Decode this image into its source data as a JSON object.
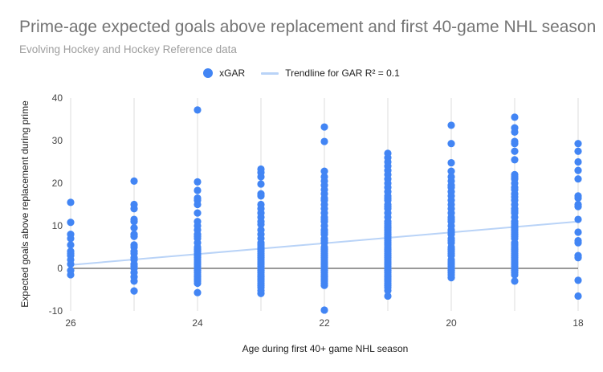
{
  "chart_data": {
    "type": "scatter",
    "title": "Prime-age expected goals above replacement and first 40-game NHL season",
    "subtitle": "Evolving Hockey and Hockey Reference data",
    "xlabel": "Age during first 40+ game NHL season",
    "ylabel": "Expected goals above replacement during prime",
    "xlim": [
      26,
      18
    ],
    "x_reversed": true,
    "ylim": [
      -10,
      40
    ],
    "x_ticks": [
      "26",
      "24",
      "22",
      "20",
      "18"
    ],
    "y_ticks": [
      "-10",
      "0",
      "10",
      "20",
      "30",
      "40"
    ],
    "grid": "vertical",
    "legend_position": "top",
    "colors": {
      "points": "#4285f4",
      "trendline": "#b9d3f7"
    },
    "series": [
      {
        "name": "xGAR",
        "points": [
          [
            26,
            15.5
          ],
          [
            26,
            10.8
          ],
          [
            26,
            8
          ],
          [
            26,
            7
          ],
          [
            26,
            5.5
          ],
          [
            26,
            4
          ],
          [
            26,
            3.5
          ],
          [
            26,
            3
          ],
          [
            26,
            2
          ],
          [
            26,
            1
          ],
          [
            26,
            -0.5
          ],
          [
            26,
            -1.5
          ],
          [
            25,
            20.5
          ],
          [
            25,
            15
          ],
          [
            25,
            14
          ],
          [
            25,
            11.5
          ],
          [
            25,
            11
          ],
          [
            25,
            9.5
          ],
          [
            25,
            8
          ],
          [
            25,
            7.5
          ],
          [
            25,
            5.5
          ],
          [
            25,
            5
          ],
          [
            25,
            4
          ],
          [
            25,
            3.5
          ],
          [
            25,
            2.5
          ],
          [
            25,
            2
          ],
          [
            25,
            1
          ],
          [
            25,
            0.5
          ],
          [
            25,
            0
          ],
          [
            25,
            -1
          ],
          [
            25,
            -2
          ],
          [
            25,
            -3
          ],
          [
            25,
            -5.3
          ],
          [
            24,
            37.2
          ],
          [
            24,
            20.3
          ],
          [
            24,
            18.3
          ],
          [
            24,
            16.5
          ],
          [
            24,
            16
          ],
          [
            24,
            15
          ],
          [
            24,
            13
          ],
          [
            24,
            11
          ],
          [
            24,
            10
          ],
          [
            24,
            9
          ],
          [
            24,
            8
          ],
          [
            24,
            7.5
          ],
          [
            24,
            7
          ],
          [
            24,
            6
          ],
          [
            24,
            5
          ],
          [
            24,
            4.5
          ],
          [
            24,
            4
          ],
          [
            24,
            3.5
          ],
          [
            24,
            3
          ],
          [
            24,
            2.5
          ],
          [
            24,
            2
          ],
          [
            24,
            1.5
          ],
          [
            24,
            1
          ],
          [
            24,
            0.5
          ],
          [
            24,
            0
          ],
          [
            24,
            -0.5
          ],
          [
            24,
            -1
          ],
          [
            24,
            -1.5
          ],
          [
            24,
            -2
          ],
          [
            24,
            -2.5
          ],
          [
            24,
            -3
          ],
          [
            24,
            -3.5
          ],
          [
            24,
            -5.7
          ],
          [
            23,
            23.3
          ],
          [
            23,
            22.5
          ],
          [
            23,
            21.5
          ],
          [
            23,
            19.8
          ],
          [
            23,
            17.5
          ],
          [
            23,
            17
          ],
          [
            23,
            15
          ],
          [
            23,
            14
          ],
          [
            23,
            13
          ],
          [
            23,
            12
          ],
          [
            23,
            11
          ],
          [
            23,
            10.3
          ],
          [
            23,
            9
          ],
          [
            23,
            8
          ],
          [
            23,
            7
          ],
          [
            23,
            6
          ],
          [
            23,
            5.5
          ],
          [
            23,
            5
          ],
          [
            23,
            4.5
          ],
          [
            23,
            4
          ],
          [
            23,
            3.5
          ],
          [
            23,
            3
          ],
          [
            23,
            2.5
          ],
          [
            23,
            2
          ],
          [
            23,
            1.5
          ],
          [
            23,
            1
          ],
          [
            23,
            0.5
          ],
          [
            23,
            0
          ],
          [
            23,
            -0.5
          ],
          [
            23,
            -1
          ],
          [
            23,
            -1.5
          ],
          [
            23,
            -2
          ],
          [
            23,
            -2.5
          ],
          [
            23,
            -3
          ],
          [
            23,
            -3.5
          ],
          [
            23,
            -4
          ],
          [
            23,
            -4.5
          ],
          [
            23,
            -5.2
          ],
          [
            23,
            -5.9
          ],
          [
            22,
            33.2
          ],
          [
            22,
            29.8
          ],
          [
            22,
            22.8
          ],
          [
            22,
            21.5
          ],
          [
            22,
            20.5
          ],
          [
            22,
            19.5
          ],
          [
            22,
            18.5
          ],
          [
            22,
            17.5
          ],
          [
            22,
            16.5
          ],
          [
            22,
            16
          ],
          [
            22,
            15
          ],
          [
            22,
            14
          ],
          [
            22,
            13
          ],
          [
            22,
            12
          ],
          [
            22,
            11.5
          ],
          [
            22,
            11
          ],
          [
            22,
            10
          ],
          [
            22,
            9
          ],
          [
            22,
            8.5
          ],
          [
            22,
            8
          ],
          [
            22,
            7
          ],
          [
            22,
            6.5
          ],
          [
            22,
            6
          ],
          [
            22,
            5
          ],
          [
            22,
            4.5
          ],
          [
            22,
            4
          ],
          [
            22,
            3.5
          ],
          [
            22,
            3
          ],
          [
            22,
            2.5
          ],
          [
            22,
            2
          ],
          [
            22,
            1.5
          ],
          [
            22,
            1
          ],
          [
            22,
            0.5
          ],
          [
            22,
            0
          ],
          [
            22,
            -0.5
          ],
          [
            22,
            -1
          ],
          [
            22,
            -1.5
          ],
          [
            22,
            -2
          ],
          [
            22,
            -2.5
          ],
          [
            22,
            -3
          ],
          [
            22,
            -3.5
          ],
          [
            22,
            -4
          ],
          [
            22,
            -9.8
          ],
          [
            21,
            27
          ],
          [
            21,
            26
          ],
          [
            21,
            25
          ],
          [
            21,
            24
          ],
          [
            21,
            23
          ],
          [
            21,
            22
          ],
          [
            21,
            21
          ],
          [
            21,
            20
          ],
          [
            21,
            19
          ],
          [
            21,
            18
          ],
          [
            21,
            17
          ],
          [
            21,
            16.5
          ],
          [
            21,
            16
          ],
          [
            21,
            15
          ],
          [
            21,
            14.5
          ],
          [
            21,
            14
          ],
          [
            21,
            13
          ],
          [
            21,
            12
          ],
          [
            21,
            11
          ],
          [
            21,
            10.5
          ],
          [
            21,
            10
          ],
          [
            21,
            9.5
          ],
          [
            21,
            9
          ],
          [
            21,
            8.5
          ],
          [
            21,
            8
          ],
          [
            21,
            7.5
          ],
          [
            21,
            7
          ],
          [
            21,
            6.5
          ],
          [
            21,
            6
          ],
          [
            21,
            5.5
          ],
          [
            21,
            5
          ],
          [
            21,
            4.5
          ],
          [
            21,
            4
          ],
          [
            21,
            3.5
          ],
          [
            21,
            3
          ],
          [
            21,
            2.5
          ],
          [
            21,
            2
          ],
          [
            21,
            1.5
          ],
          [
            21,
            1
          ],
          [
            21,
            0.5
          ],
          [
            21,
            0
          ],
          [
            21,
            -0.5
          ],
          [
            21,
            -1
          ],
          [
            21,
            -1.5
          ],
          [
            21,
            -2
          ],
          [
            21,
            -2.5
          ],
          [
            21,
            -3
          ],
          [
            21,
            -3.5
          ],
          [
            21,
            -4
          ],
          [
            21,
            -4.5
          ],
          [
            21,
            -5.2
          ],
          [
            21,
            -6.5
          ],
          [
            20,
            33.6
          ],
          [
            20,
            29.3
          ],
          [
            20,
            24.8
          ],
          [
            20,
            22.8
          ],
          [
            20,
            21.5
          ],
          [
            20,
            20.5
          ],
          [
            20,
            19.5
          ],
          [
            20,
            19
          ],
          [
            20,
            18
          ],
          [
            20,
            17
          ],
          [
            20,
            16
          ],
          [
            20,
            15
          ],
          [
            20,
            14
          ],
          [
            20,
            13
          ],
          [
            20,
            12
          ],
          [
            20,
            11.5
          ],
          [
            20,
            11
          ],
          [
            20,
            10
          ],
          [
            20,
            9
          ],
          [
            20,
            8.5
          ],
          [
            20,
            8
          ],
          [
            20,
            7
          ],
          [
            20,
            6.5
          ],
          [
            20,
            6
          ],
          [
            20,
            5
          ],
          [
            20,
            4.5
          ],
          [
            20,
            4
          ],
          [
            20,
            3.5
          ],
          [
            20,
            3
          ],
          [
            20,
            2
          ],
          [
            20,
            1.5
          ],
          [
            20,
            1
          ],
          [
            20,
            0.5
          ],
          [
            20,
            0
          ],
          [
            20,
            -0.5
          ],
          [
            20,
            -1
          ],
          [
            20,
            -1.5
          ],
          [
            20,
            -2.2
          ],
          [
            19,
            35.5
          ],
          [
            19,
            33
          ],
          [
            19,
            32
          ],
          [
            19,
            29.8
          ],
          [
            19,
            29.3
          ],
          [
            19,
            27.5
          ],
          [
            19,
            25.5
          ],
          [
            19,
            22
          ],
          [
            19,
            21.5
          ],
          [
            19,
            21
          ],
          [
            19,
            20
          ],
          [
            19,
            19
          ],
          [
            19,
            18.5
          ],
          [
            19,
            17.5
          ],
          [
            19,
            16.8
          ],
          [
            19,
            16
          ],
          [
            19,
            15
          ],
          [
            19,
            14
          ],
          [
            19,
            13.5
          ],
          [
            19,
            13
          ],
          [
            19,
            12
          ],
          [
            19,
            11
          ],
          [
            19,
            10.5
          ],
          [
            19,
            10
          ],
          [
            19,
            9.5
          ],
          [
            19,
            9
          ],
          [
            19,
            8.5
          ],
          [
            19,
            8
          ],
          [
            19,
            7.5
          ],
          [
            19,
            7
          ],
          [
            19,
            6
          ],
          [
            19,
            5.5
          ],
          [
            19,
            5
          ],
          [
            19,
            4.5
          ],
          [
            19,
            4
          ],
          [
            19,
            3.5
          ],
          [
            19,
            3
          ],
          [
            19,
            2.5
          ],
          [
            19,
            2
          ],
          [
            19,
            1.5
          ],
          [
            19,
            1
          ],
          [
            19,
            0.5
          ],
          [
            19,
            0
          ],
          [
            19,
            -0.5
          ],
          [
            19,
            -1
          ],
          [
            19,
            -1.5
          ],
          [
            19,
            -3
          ],
          [
            18,
            29.3
          ],
          [
            18,
            27.5
          ],
          [
            18,
            25
          ],
          [
            18,
            23
          ],
          [
            18,
            21
          ],
          [
            18,
            17
          ],
          [
            18,
            16.5
          ],
          [
            18,
            15
          ],
          [
            18,
            14.5
          ],
          [
            18,
            11.5
          ],
          [
            18,
            8.5
          ],
          [
            18,
            6.5
          ],
          [
            18,
            6
          ],
          [
            18,
            3
          ],
          [
            18,
            2.5
          ],
          [
            18,
            -2.8
          ],
          [
            18,
            -6.5
          ]
        ]
      },
      {
        "name": "Trendline for GAR R² = 0.1",
        "type": "line",
        "points": [
          [
            26,
            0.8
          ],
          [
            18,
            11.0
          ]
        ]
      }
    ]
  }
}
